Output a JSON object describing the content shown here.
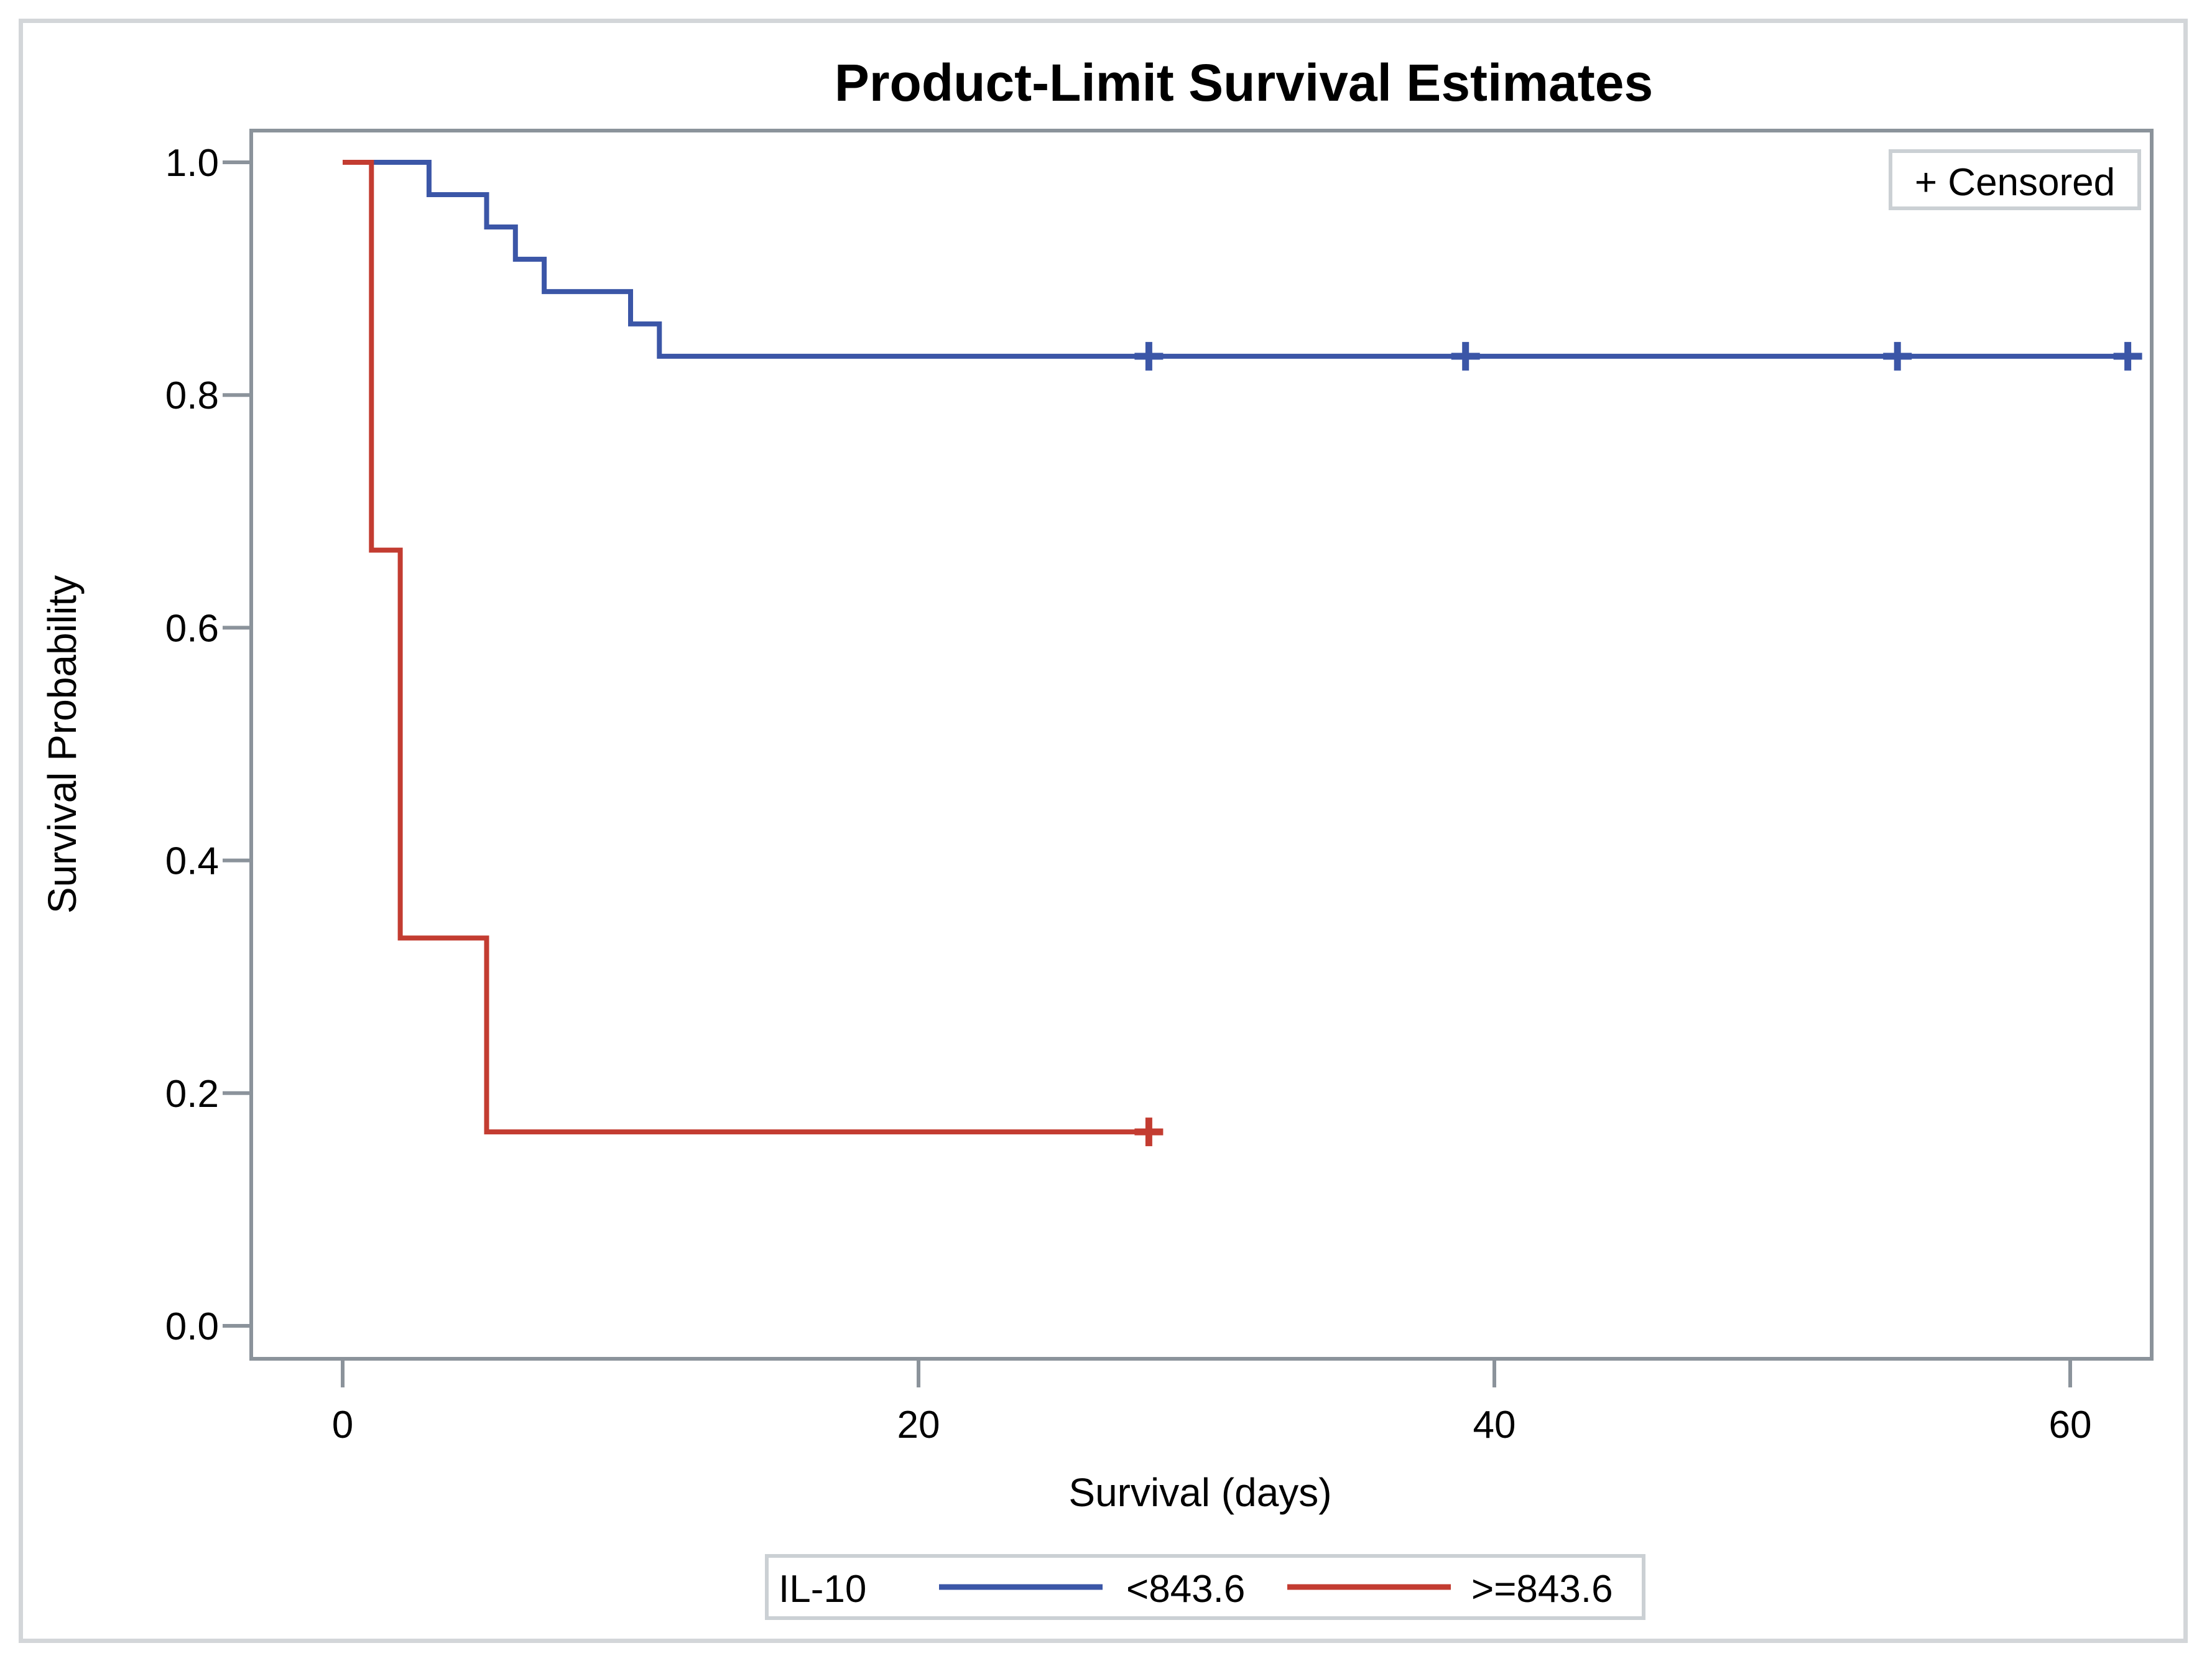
{
  "title": "Product-Limit Survival Estimates",
  "censored_legend_label": "+ Censored",
  "axes": {
    "xlabel": "Survival (days)",
    "ylabel": "Survival Probability"
  },
  "legend": {
    "group_label": "IL-10",
    "entries": [
      {
        "label": "<843.6",
        "color": "#3b56a7"
      },
      {
        "label": ">=843.6",
        "color": "#c33c31"
      }
    ]
  },
  "chart_data": {
    "type": "line",
    "subtype": "kaplan-meier-step",
    "title": "Product-Limit Survival Estimates",
    "xlabel": "Survival (days)",
    "ylabel": "Survival Probability",
    "xlim": [
      -3.2,
      62.8
    ],
    "ylim": [
      -0.028,
      1.027
    ],
    "grid": false,
    "legend_position": "bottom",
    "censor_marker": "+",
    "xticks": [
      0,
      20,
      40,
      60
    ],
    "yticks": [
      {
        "v": 1.0,
        "label": "1.0"
      },
      {
        "v": 0.8,
        "label": "0.8"
      },
      {
        "v": 0.6,
        "label": "0.6"
      },
      {
        "v": 0.4,
        "label": "0.4"
      },
      {
        "v": 0.2,
        "label": "0.2"
      },
      {
        "v": 0.0,
        "label": "0.0"
      }
    ],
    "series": [
      {
        "name": "<843.6",
        "color": "#3b56a7",
        "steps": [
          [
            0,
            1.0
          ],
          [
            3,
            0.9722
          ],
          [
            5,
            0.9444
          ],
          [
            6,
            0.9167
          ],
          [
            7,
            0.8889
          ],
          [
            10,
            0.8611
          ],
          [
            11,
            0.8333
          ]
        ],
        "end_x": 62,
        "censored": [
          [
            28,
            0.8333
          ],
          [
            39,
            0.8333
          ],
          [
            54,
            0.8333
          ],
          [
            62,
            0.8333
          ]
        ]
      },
      {
        "name": ">=843.6",
        "color": "#c33c31",
        "steps": [
          [
            0,
            1.0
          ],
          [
            1,
            0.6667
          ],
          [
            2,
            0.3333
          ],
          [
            5,
            0.1667
          ]
        ],
        "end_x": 28,
        "censored": [
          [
            28,
            0.1667
          ]
        ]
      }
    ]
  },
  "colors": {
    "frame": "#8b939b",
    "legend_border": "#cbd0d4",
    "outer_border": "#d3d6d9"
  }
}
